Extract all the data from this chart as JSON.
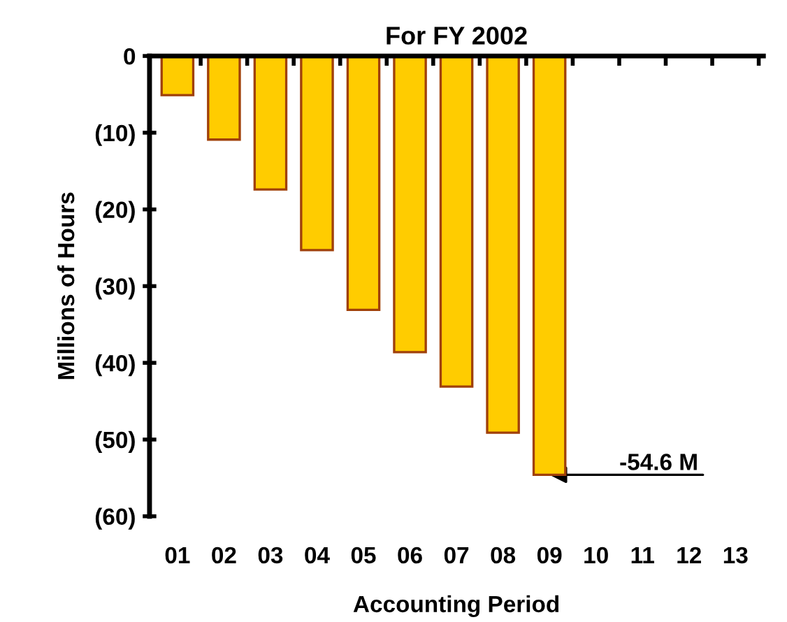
{
  "chart_data": {
    "type": "bar",
    "title": "For FY 2002",
    "xlabel": "Accounting Period",
    "ylabel": "Millions of Hours",
    "categories": [
      "01",
      "02",
      "03",
      "04",
      "05",
      "06",
      "07",
      "08",
      "09",
      "10",
      "11",
      "12",
      "13"
    ],
    "values": [
      -5.1,
      -10.9,
      -17.4,
      -25.3,
      -33.1,
      -38.6,
      -43.1,
      -49.1,
      -54.6,
      null,
      null,
      null,
      null
    ],
    "color": "#ffcc00",
    "ylim": [
      -60,
      0
    ],
    "yticks": [
      {
        "value": -60,
        "label": "(60)"
      },
      {
        "value": -50,
        "label": "(50)"
      },
      {
        "value": -40,
        "label": "(40)"
      },
      {
        "value": -30,
        "label": "(30)"
      },
      {
        "value": -20,
        "label": "(20)"
      },
      {
        "value": -10,
        "label": "(10)"
      },
      0
    ],
    "grid": false,
    "legend": false,
    "annotations": [
      {
        "text": "-54.6 M",
        "x": "09",
        "y": -54.6
      }
    ]
  }
}
